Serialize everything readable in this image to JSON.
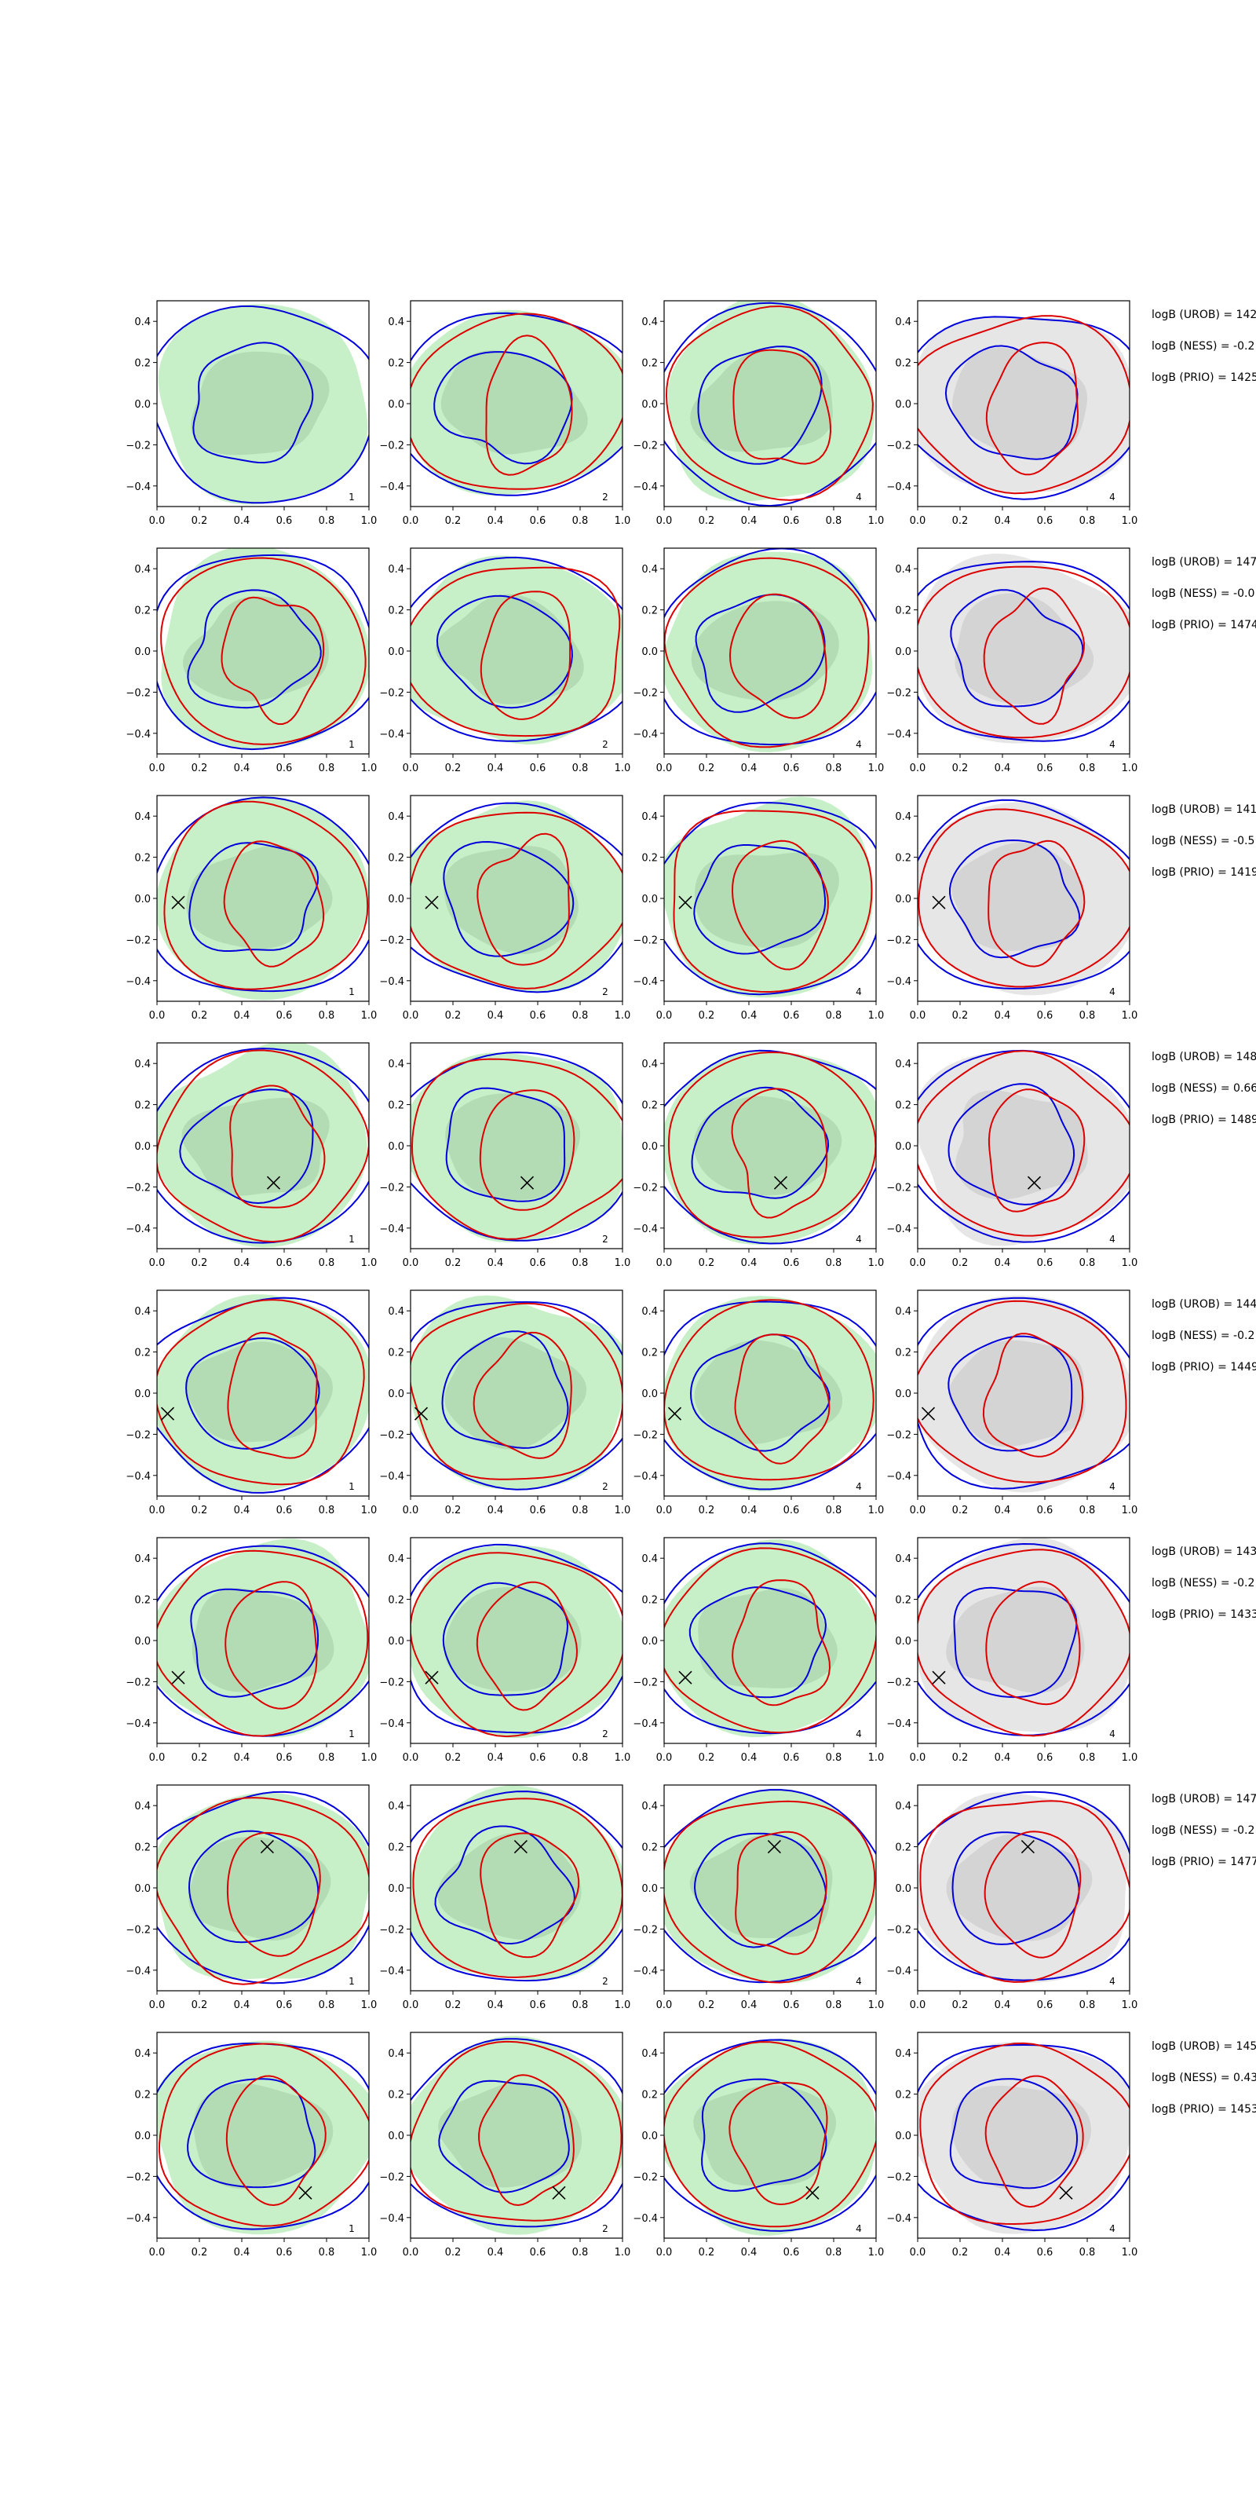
{
  "figure": {
    "rows": 8,
    "cols": 4
  },
  "chart_data": {
    "type": "contour",
    "xlim": [
      0.0,
      1.0
    ],
    "ylim": [
      -0.5,
      0.5
    ],
    "xticks": [
      "0.0",
      "0.2",
      "0.4",
      "0.6",
      "0.8",
      "1.0"
    ],
    "yticks": [
      "0.4",
      "0.2",
      "0.0",
      "−0.2",
      "−0.4"
    ],
    "yticks_values": [
      0.4,
      0.2,
      0.0,
      -0.2,
      -0.4
    ],
    "xticks_values": [
      0.0,
      0.2,
      0.4,
      0.6,
      0.8,
      1.0
    ],
    "colors": {
      "fill_green_outer": "#c8f0c8",
      "fill_green_inner": "#b4dcb4",
      "fill_gray_outer": "#e6e6e6",
      "fill_gray_inner": "#d4d4d4",
      "contour_blue": "#0000dd",
      "contour_red": "#dd0000",
      "marker": "#000000"
    },
    "panel_fill": [
      "green",
      "green",
      "green",
      "gray"
    ],
    "panel_ids": [
      [
        "1",
        "2",
        "4",
        "4"
      ],
      [
        "1",
        "2",
        "4",
        "4"
      ],
      [
        "1",
        "2",
        "4",
        "4"
      ],
      [
        "1",
        "2",
        "4",
        "4"
      ],
      [
        "1",
        "2",
        "4",
        "4"
      ],
      [
        "1",
        "2",
        "4",
        "4"
      ],
      [
        "1",
        "2",
        "4",
        "4"
      ],
      [
        "1",
        "2",
        "4",
        "4"
      ]
    ],
    "markers": [
      null,
      null,
      [
        0.1,
        -0.02
      ],
      [
        0.55,
        -0.18
      ],
      [
        0.05,
        -0.1
      ],
      [
        0.1,
        -0.18
      ],
      [
        0.52,
        0.2
      ],
      [
        0.7,
        -0.28
      ]
    ],
    "row_labels": [
      [
        "logB (UROB) = 142",
        "logB (NESS) = -0.2",
        "logB (PRIO) = 1425"
      ],
      [
        "logB (UROB) = 147",
        "logB (NESS) = -0.0",
        "logB (PRIO) = 1474"
      ],
      [
        "logB (UROB) = 141",
        "logB (NESS) = -0.5",
        "logB (PRIO) = 1419"
      ],
      [
        "logB (UROB) = 148",
        "logB (NESS) = 0.66",
        "logB (PRIO) = 1489"
      ],
      [
        "logB (UROB) = 144",
        "logB (NESS) = -0.2",
        "logB (PRIO) = 1449"
      ],
      [
        "logB (UROB) = 143",
        "logB (NESS) = -0.2",
        "logB (PRIO) = 1433"
      ],
      [
        "logB (UROB) = 147",
        "logB (NESS) = -0.2",
        "logB (PRIO) = 1477"
      ],
      [
        "logB (UROB) = 145",
        "logB (NESS) = 0.43",
        "logB (PRIO) = 1453"
      ]
    ]
  }
}
